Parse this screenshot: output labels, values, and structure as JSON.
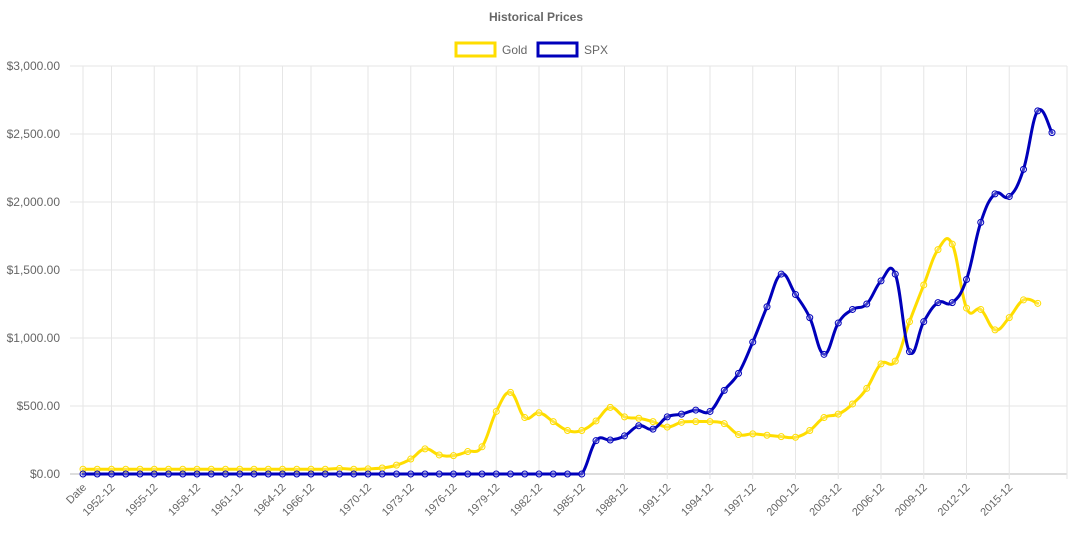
{
  "chart_data": {
    "type": "line",
    "title": "Historical Prices",
    "legend_position": "top-center",
    "grid": true,
    "ylim": [
      0,
      3000
    ],
    "y_ticks": [
      0,
      500,
      1000,
      1500,
      2000,
      2500,
      3000
    ],
    "y_tick_labels": [
      "$0.00",
      "$500.00",
      "$1,000.00",
      "$1,500.00",
      "$2,000.00",
      "$2,500.00",
      "$3,000.00"
    ],
    "x_tick_labels": [
      "Date",
      "1952-12",
      "1955-12",
      "1958-12",
      "1961-12",
      "1964-12",
      "1966-12",
      "1970-12",
      "1973-12",
      "1976-12",
      "1979-12",
      "1982-12",
      "1985-12",
      "1988-12",
      "1991-12",
      "1994-12",
      "1997-12",
      "2000-12",
      "2003-12",
      "2006-12",
      "2009-12",
      "2012-12",
      "2015-12"
    ],
    "x_tick_positions": [
      0,
      2,
      5,
      8,
      11,
      14,
      16,
      20,
      23,
      26,
      29,
      32,
      35,
      38,
      41,
      44,
      47,
      50,
      53,
      56,
      59,
      62,
      65
    ],
    "series": [
      {
        "name": "Gold",
        "color": "#FFDD00",
        "values": [
          35,
          35,
          35,
          35,
          35,
          35,
          35,
          35,
          35,
          35,
          35,
          35,
          35,
          35,
          35,
          35,
          35,
          35,
          40,
          35,
          38,
          44,
          65,
          110,
          185,
          140,
          135,
          165,
          200,
          460,
          600,
          415,
          450,
          385,
          320,
          320,
          390,
          490,
          420,
          410,
          385,
          345,
          380,
          385,
          385,
          370,
          290,
          295,
          285,
          275,
          270,
          320,
          415,
          440,
          515,
          630,
          810,
          830,
          1120,
          1390,
          1650,
          1690,
          1220,
          1210,
          1060,
          1150,
          1280,
          1255
        ]
      },
      {
        "name": "SPX",
        "color": "#0000BB",
        "values": [
          0,
          0,
          0,
          0,
          0,
          0,
          0,
          0,
          0,
          0,
          0,
          0,
          0,
          0,
          0,
          0,
          0,
          0,
          0,
          0,
          0,
          0,
          0,
          0,
          0,
          0,
          0,
          0,
          0,
          0,
          0,
          0,
          0,
          0,
          0,
          0,
          245,
          250,
          280,
          355,
          330,
          420,
          440,
          470,
          460,
          615,
          740,
          970,
          1230,
          1470,
          1320,
          1150,
          880,
          1110,
          1210,
          1250,
          1420,
          1470,
          900,
          1120,
          1260,
          1260,
          1430,
          1850,
          2060,
          2040,
          2240,
          2670,
          2510
        ]
      }
    ]
  }
}
